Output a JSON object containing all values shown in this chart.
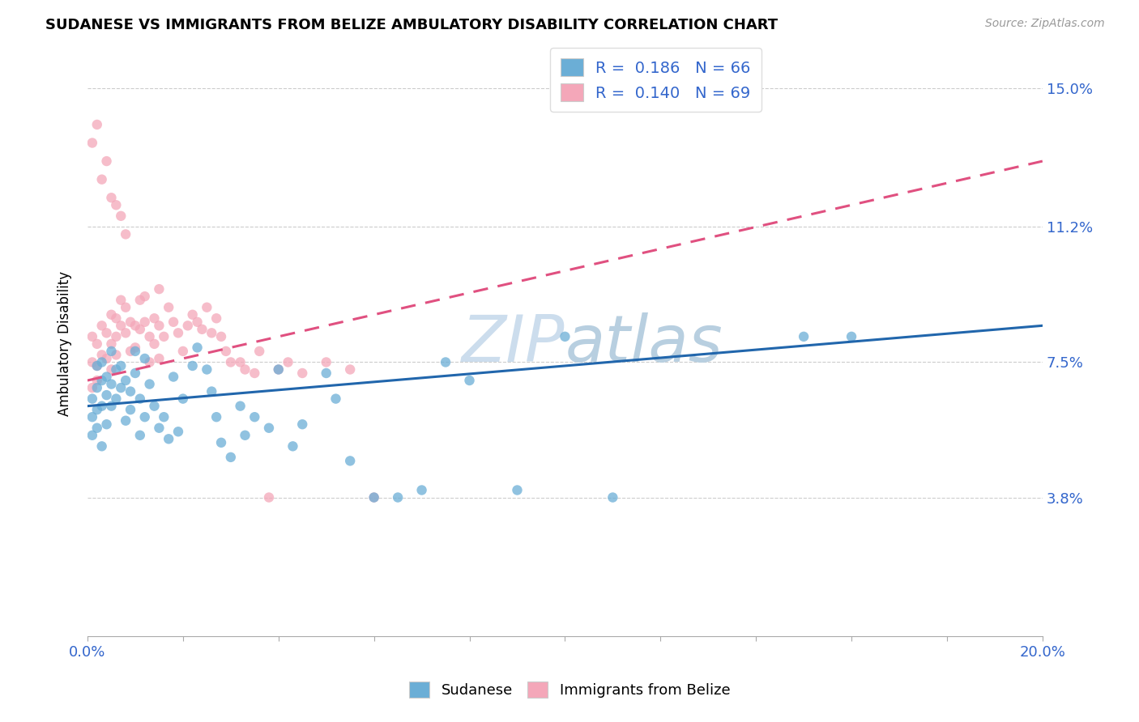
{
  "title": "SUDANESE VS IMMIGRANTS FROM BELIZE AMBULATORY DISABILITY CORRELATION CHART",
  "source": "Source: ZipAtlas.com",
  "ylabel": "Ambulatory Disability",
  "xlim": [
    0.0,
    0.2
  ],
  "ylim": [
    0.0,
    0.16
  ],
  "ytick_positions": [
    0.038,
    0.075,
    0.112,
    0.15
  ],
  "ytick_labels": [
    "3.8%",
    "7.5%",
    "11.2%",
    "15.0%"
  ],
  "blue_color": "#6baed6",
  "pink_color": "#f4a7b9",
  "blue_line_color": "#2166ac",
  "pink_line_color": "#e05080",
  "watermark_color": "#ccdded",
  "legend_R1": "0.186",
  "legend_N1": "66",
  "legend_R2": "0.140",
  "legend_N2": "69",
  "blue_line_x0": 0.0,
  "blue_line_y0": 0.063,
  "blue_line_x1": 0.2,
  "blue_line_y1": 0.085,
  "pink_line_x0": 0.0,
  "pink_line_y0": 0.07,
  "pink_line_x1": 0.2,
  "pink_line_y1": 0.13,
  "sudanese_x": [
    0.001,
    0.001,
    0.001,
    0.002,
    0.002,
    0.002,
    0.002,
    0.003,
    0.003,
    0.003,
    0.003,
    0.004,
    0.004,
    0.004,
    0.005,
    0.005,
    0.005,
    0.006,
    0.006,
    0.007,
    0.007,
    0.008,
    0.008,
    0.009,
    0.009,
    0.01,
    0.01,
    0.011,
    0.011,
    0.012,
    0.012,
    0.013,
    0.014,
    0.015,
    0.016,
    0.017,
    0.018,
    0.019,
    0.02,
    0.022,
    0.023,
    0.025,
    0.026,
    0.027,
    0.028,
    0.03,
    0.032,
    0.033,
    0.035,
    0.038,
    0.04,
    0.043,
    0.045,
    0.05,
    0.052,
    0.055,
    0.06,
    0.065,
    0.07,
    0.075,
    0.08,
    0.09,
    0.1,
    0.11,
    0.15,
    0.16
  ],
  "sudanese_y": [
    0.06,
    0.055,
    0.065,
    0.062,
    0.068,
    0.057,
    0.074,
    0.063,
    0.07,
    0.052,
    0.075,
    0.066,
    0.071,
    0.058,
    0.069,
    0.078,
    0.063,
    0.073,
    0.065,
    0.068,
    0.074,
    0.07,
    0.059,
    0.067,
    0.062,
    0.072,
    0.078,
    0.065,
    0.055,
    0.06,
    0.076,
    0.069,
    0.063,
    0.057,
    0.06,
    0.054,
    0.071,
    0.056,
    0.065,
    0.074,
    0.079,
    0.073,
    0.067,
    0.06,
    0.053,
    0.049,
    0.063,
    0.055,
    0.06,
    0.057,
    0.073,
    0.052,
    0.058,
    0.072,
    0.065,
    0.048,
    0.038,
    0.038,
    0.04,
    0.075,
    0.07,
    0.04,
    0.082,
    0.038,
    0.082,
    0.082
  ],
  "belize_x": [
    0.001,
    0.001,
    0.001,
    0.002,
    0.002,
    0.002,
    0.003,
    0.003,
    0.004,
    0.004,
    0.005,
    0.005,
    0.005,
    0.006,
    0.006,
    0.006,
    0.007,
    0.007,
    0.008,
    0.008,
    0.009,
    0.009,
    0.01,
    0.01,
    0.011,
    0.011,
    0.012,
    0.012,
    0.013,
    0.013,
    0.014,
    0.014,
    0.015,
    0.015,
    0.016,
    0.017,
    0.018,
    0.019,
    0.02,
    0.021,
    0.022,
    0.023,
    0.024,
    0.025,
    0.026,
    0.027,
    0.028,
    0.029,
    0.03,
    0.032,
    0.033,
    0.035,
    0.036,
    0.038,
    0.04,
    0.042,
    0.045,
    0.05,
    0.055,
    0.06,
    0.001,
    0.002,
    0.003,
    0.004,
    0.005,
    0.006,
    0.007,
    0.008,
    0.015
  ],
  "belize_y": [
    0.075,
    0.068,
    0.082,
    0.074,
    0.08,
    0.07,
    0.085,
    0.077,
    0.083,
    0.076,
    0.088,
    0.08,
    0.073,
    0.087,
    0.082,
    0.077,
    0.092,
    0.085,
    0.09,
    0.083,
    0.086,
    0.078,
    0.085,
    0.079,
    0.084,
    0.092,
    0.086,
    0.093,
    0.082,
    0.075,
    0.08,
    0.087,
    0.076,
    0.085,
    0.082,
    0.09,
    0.086,
    0.083,
    0.078,
    0.085,
    0.088,
    0.086,
    0.084,
    0.09,
    0.083,
    0.087,
    0.082,
    0.078,
    0.075,
    0.075,
    0.073,
    0.072,
    0.078,
    0.038,
    0.073,
    0.075,
    0.072,
    0.075,
    0.073,
    0.038,
    0.135,
    0.14,
    0.125,
    0.13,
    0.12,
    0.118,
    0.115,
    0.11,
    0.095
  ]
}
